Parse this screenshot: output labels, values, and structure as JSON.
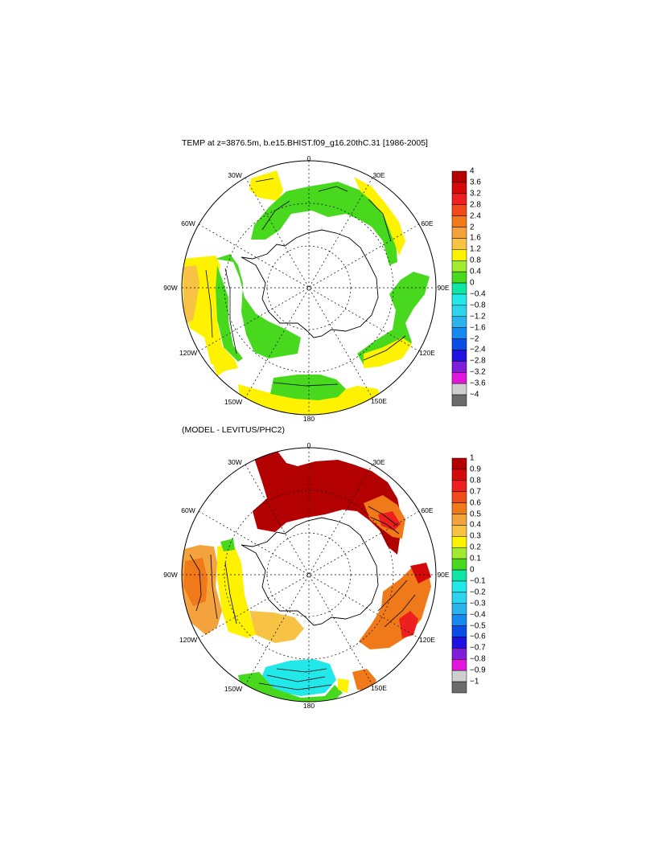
{
  "panels": [
    {
      "title": "TEMP at z=3876.5m, b.e15.BHIST.f09_g16.20thC.31 [1986-2005]",
      "lon_labels": {
        "top": "0",
        "r1": "30E",
        "r2": "60E",
        "r3": "90E",
        "r4": "120E",
        "r5": "150E",
        "bottom": "180",
        "l5": "150W",
        "l4": "120W",
        "l3": "90W",
        "l2": "60W",
        "l1": "30W"
      },
      "colorbar": {
        "labels": [
          "4",
          "3.6",
          "3.2",
          "2.8",
          "2.4",
          "2",
          "1.6",
          "1.2",
          "0.8",
          "0.4",
          "0",
          "−0.4",
          "−0.8",
          "−1.2",
          "−1.6",
          "−2",
          "−2.4",
          "−2.8",
          "−3.2",
          "−3.6",
          "−4"
        ],
        "colors": [
          "#b30000",
          "#d40a0a",
          "#ee1f1f",
          "#f14a1a",
          "#f07a1a",
          "#f3a23c",
          "#f8c345",
          "#fff200",
          "#a2ea2d",
          "#48d91e",
          "#10e5a6",
          "#22e8ea",
          "#2ed3ee",
          "#2cb3ee",
          "#1689ef",
          "#0b4ce6",
          "#1f12e0",
          "#7e1ed8",
          "#e215da",
          "#cfcfcf",
          "#6b6b6b"
        ]
      }
    },
    {
      "title": "(MODEL - LEVITUS/PHC2)",
      "lon_labels": {
        "top": "0",
        "r1": "30E",
        "r2": "60E",
        "r3": "90E",
        "r4": "120E",
        "r5": "150E",
        "bottom": "180",
        "l5": "150W",
        "l4": "120W",
        "l3": "90W",
        "l2": "60W",
        "l1": "30W"
      },
      "colorbar": {
        "labels": [
          "1",
          "0.9",
          "0.8",
          "0.7",
          "0.6",
          "0.5",
          "0.4",
          "0.3",
          "0.2",
          "0.1",
          "0",
          "−0.1",
          "−0.2",
          "−0.3",
          "−0.4",
          "−0.5",
          "−0.6",
          "−0.7",
          "−0.8",
          "−0.9",
          "−1"
        ],
        "colors": [
          "#b30000",
          "#d40a0a",
          "#ee1f1f",
          "#f14a1a",
          "#f07a1a",
          "#f3a23c",
          "#f8c345",
          "#fff200",
          "#a2ea2d",
          "#48d91e",
          "#10e5a6",
          "#22e8ea",
          "#2ed3ee",
          "#2cb3ee",
          "#1689ef",
          "#0b4ce6",
          "#1f12e0",
          "#7e1ed8",
          "#e215da",
          "#cfcfcf",
          "#6b6b6b"
        ]
      }
    }
  ]
}
